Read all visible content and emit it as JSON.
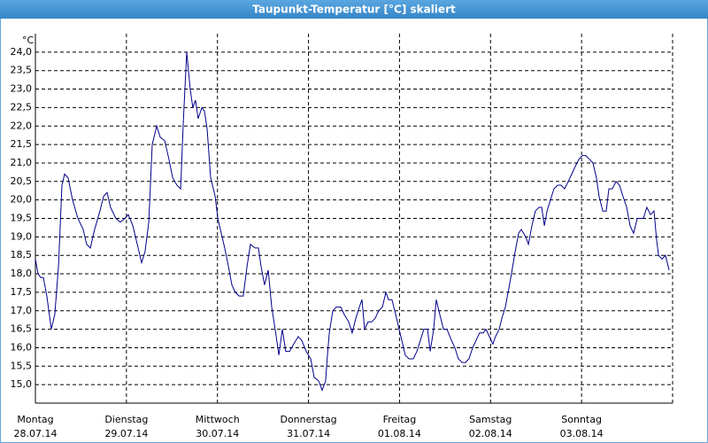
{
  "chart_data": {
    "type": "line",
    "title": "Taupunkt-Temperatur [°C] skaliert",
    "y_unit": "°C",
    "xlim": [
      0,
      168
    ],
    "ylim": [
      14.5,
      24.5
    ],
    "xticks": [
      {
        "value": 0,
        "label": "Montag"
      },
      {
        "value": 24,
        "label": "Dienstag"
      },
      {
        "value": 48,
        "label": "Mittwoch"
      },
      {
        "value": 72,
        "label": "Donnerstag"
      },
      {
        "value": 96,
        "label": "Freitag"
      },
      {
        "value": 120,
        "label": "Samstag"
      },
      {
        "value": 144,
        "label": "Sonntag"
      }
    ],
    "xtick_dates": [
      "28.07.14",
      "29.07.14",
      "30.07.14",
      "31.07.14",
      "01.08.14",
      "02.08.14",
      "03.08.14"
    ],
    "yticks": [
      {
        "value": 15,
        "label": "15,0"
      },
      {
        "value": 15.5,
        "label": "15,5"
      },
      {
        "value": 16,
        "label": "16,0"
      },
      {
        "value": 16.5,
        "label": "16,5"
      },
      {
        "value": 17,
        "label": "17,0"
      },
      {
        "value": 17.5,
        "label": "17,5"
      },
      {
        "value": 18,
        "label": "18,0"
      },
      {
        "value": 18.5,
        "label": "18,5"
      },
      {
        "value": 19,
        "label": "19,0"
      },
      {
        "value": 19.5,
        "label": "19,5"
      },
      {
        "value": 20,
        "label": "20,0"
      },
      {
        "value": 20.5,
        "label": "20,5"
      },
      {
        "value": 21,
        "label": "21,0"
      },
      {
        "value": 21.5,
        "label": "21,5"
      },
      {
        "value": 22,
        "label": "22,0"
      },
      {
        "value": 22.5,
        "label": "22,5"
      },
      {
        "value": 23,
        "label": "23,0"
      },
      {
        "value": 23.5,
        "label": "23,5"
      },
      {
        "value": 24,
        "label": "24,0"
      }
    ],
    "grid": true,
    "color": "#00008b",
    "x": [
      0,
      0.7,
      1.4,
      2.1,
      3.0,
      4.2,
      5.1,
      6.1,
      7.0,
      7.7,
      8.6,
      9.8,
      11.2,
      12.6,
      13.5,
      14.5,
      15.6,
      17.0,
      18.0,
      18.9,
      19.8,
      21.2,
      22.4,
      23.6,
      24.5,
      25.7,
      27.1,
      28.0,
      28.9,
      29.9,
      30.8,
      32.0,
      32.9,
      34.1,
      35.2,
      36.2,
      37.3,
      38.3,
      39.0,
      39.9,
      40.8,
      41.5,
      42.2,
      42.9,
      43.9,
      44.6,
      45.3,
      46.2,
      47.4,
      48.1,
      49.0,
      49.9,
      50.9,
      51.8,
      52.7,
      53.7,
      54.8,
      55.8,
      56.7,
      57.9,
      58.8,
      59.5,
      60.4,
      61.4,
      62.3,
      63.2,
      64.2,
      65.1,
      66.0,
      67.0,
      68.1,
      69.3,
      70.2,
      71.4,
      72.6,
      73.5,
      74.7,
      75.6,
      76.5,
      77.0,
      77.5,
      78.4,
      79.3,
      80.5,
      81.4,
      82.6,
      83.5,
      84.5,
      85.4,
      86.1,
      86.8,
      87.7,
      88.7,
      89.6,
      90.5,
      91.5,
      92.4,
      93.1,
      94.0,
      95.0,
      95.9,
      96.6,
      97.5,
      98.5,
      99.6,
      100.6,
      101.5,
      102.4,
      103.4,
      104.1,
      105.0,
      105.7,
      106.6,
      107.6,
      108.5,
      109.7,
      110.6,
      111.5,
      112.5,
      113.4,
      114.3,
      115.3,
      116.2,
      117.1,
      118.1,
      118.8,
      119.7,
      120.6,
      121.3,
      122.3,
      123.0,
      123.9,
      124.8,
      125.5,
      126.5,
      127.4,
      128.1,
      129.3,
      130.0,
      130.9,
      131.8,
      132.8,
      133.5,
      134.2,
      134.9,
      135.8,
      136.7,
      137.7,
      138.6,
      139.5,
      140.5,
      141.4,
      142.3,
      143.3,
      144.2,
      145.1,
      146.1,
      147.0,
      147.9,
      148.6,
      149.6,
      150.5,
      151.2,
      152.1,
      153.1,
      154.0,
      154.9,
      155.9,
      156.8,
      157.7,
      158.7,
      159.4,
      160.3,
      161.2,
      162.2,
      163.1,
      163.8,
      164.3,
      165.2,
      166.1,
      167.1
    ],
    "values": [
      18.4,
      18.0,
      17.9,
      17.9,
      17.4,
      16.5,
      16.9,
      18.2,
      20.4,
      20.7,
      20.6,
      20.0,
      19.5,
      19.2,
      18.8,
      18.7,
      19.2,
      19.7,
      20.1,
      20.2,
      19.8,
      19.5,
      19.4,
      19.5,
      19.6,
      19.3,
      18.7,
      18.3,
      18.6,
      19.4,
      21.5,
      22.0,
      21.7,
      21.6,
      21.1,
      20.6,
      20.4,
      20.3,
      22.1,
      24.0,
      23.0,
      22.5,
      22.7,
      22.2,
      22.5,
      22.4,
      21.9,
      20.6,
      20.1,
      19.5,
      19.1,
      18.7,
      18.2,
      17.7,
      17.5,
      17.4,
      17.4,
      18.2,
      18.8,
      18.7,
      18.7,
      18.2,
      17.7,
      18.1,
      17.1,
      16.5,
      15.8,
      16.5,
      15.9,
      15.9,
      16.1,
      16.3,
      16.2,
      15.9,
      15.7,
      15.2,
      15.1,
      14.85,
      15.1,
      15.8,
      16.4,
      17.0,
      17.1,
      17.1,
      16.9,
      16.7,
      16.4,
      16.8,
      17.1,
      17.3,
      16.5,
      16.7,
      16.7,
      16.8,
      17.0,
      17.1,
      17.5,
      17.3,
      17.3,
      16.9,
      16.5,
      16.2,
      15.8,
      15.7,
      15.7,
      15.9,
      16.2,
      16.5,
      16.5,
      15.9,
      16.5,
      17.3,
      16.9,
      16.5,
      16.5,
      16.2,
      16.0,
      15.7,
      15.6,
      15.6,
      15.7,
      16.0,
      16.2,
      16.4,
      16.4,
      16.5,
      16.3,
      16.1,
      16.3,
      16.5,
      16.8,
      17.1,
      17.6,
      18.0,
      18.6,
      19.1,
      19.2,
      19.0,
      18.8,
      19.3,
      19.7,
      19.8,
      19.8,
      19.3,
      19.7,
      20.0,
      20.3,
      20.4,
      20.4,
      20.3,
      20.5,
      20.7,
      20.9,
      21.1,
      21.2,
      21.2,
      21.1,
      21.0,
      20.6,
      20.1,
      19.7,
      19.7,
      20.3,
      20.3,
      20.5,
      20.4,
      20.1,
      19.8,
      19.3,
      19.1,
      19.5,
      19.5,
      19.5,
      19.8,
      19.6,
      19.7,
      18.9,
      18.5,
      18.4,
      18.5,
      18.1
    ]
  }
}
